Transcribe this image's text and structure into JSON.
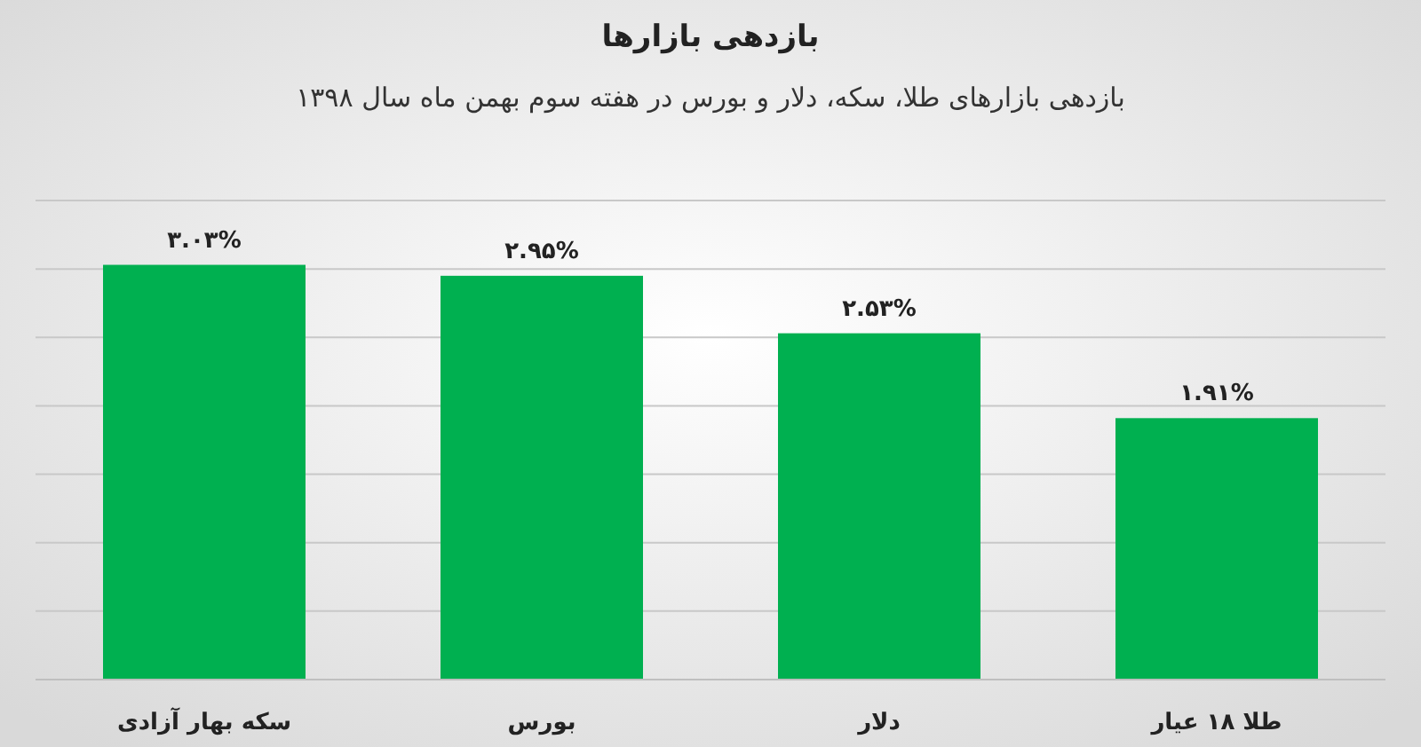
{
  "chart_data": {
    "type": "bar",
    "title": "بازدهی بازارها",
    "subtitle": "بازدهی بازارهای طلا، سکه، دلار و بورس در هفته سوم بهمن ماه سال ۱۳۹۸",
    "categories": [
      "سکه بهار آزادی",
      "بورس",
      "دلار",
      "طلا ۱۸ عیار"
    ],
    "values": [
      3.03,
      2.95,
      2.53,
      1.91
    ],
    "color": "#00b050",
    "value_labels": [
      "۳.۰۳%",
      "۲.۹۵%",
      "۲.۵۳%",
      "۱.۹۱%"
    ],
    "ylim": [
      0,
      3.5
    ],
    "yticks": [
      {
        "value": 0,
        "label": null
      },
      {
        "value": 0.5,
        "label": null
      },
      {
        "value": 1,
        "label": null
      },
      {
        "value": 1.5,
        "label": null
      },
      {
        "value": 2,
        "label": null
      },
      {
        "value": 2.5,
        "label": null
      },
      {
        "value": 3,
        "label": null
      },
      {
        "value": 3.5,
        "label": null
      }
    ],
    "grid": "y",
    "tick_labels": "x"
  }
}
